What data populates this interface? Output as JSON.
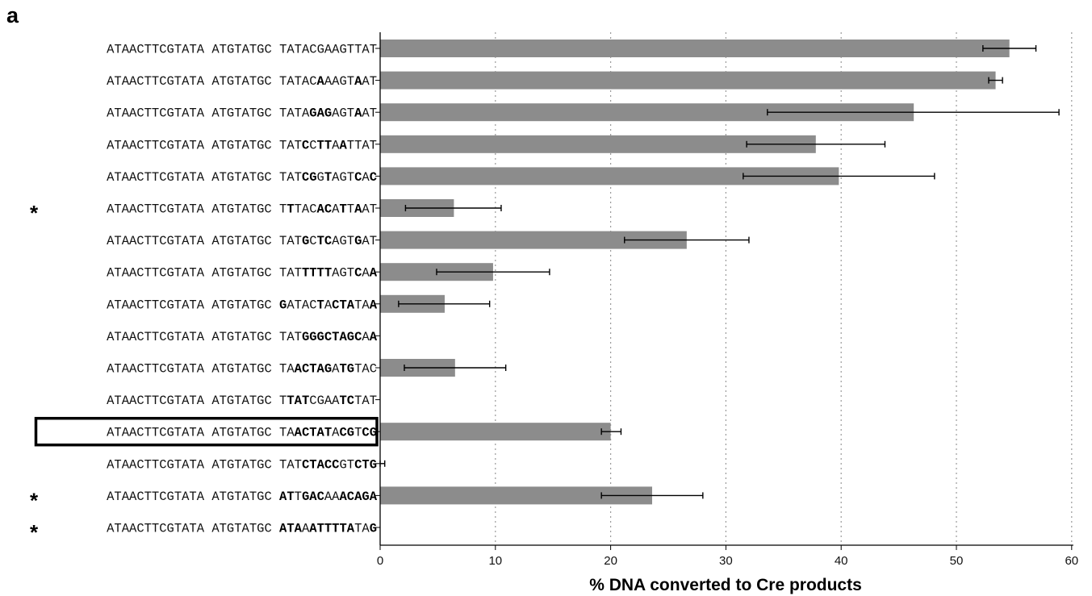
{
  "panel_label": "a",
  "chart_data": {
    "type": "bar",
    "orientation": "horizontal",
    "xlabel": "% DNA converted to Cre products",
    "xlim": [
      0,
      60
    ],
    "xticks": [
      "0",
      "10",
      "20",
      "30",
      "40",
      "50",
      "60"
    ],
    "grid": "vertical dotted lines at 10-unit intervals",
    "bar_color": "#8c8c8c",
    "highlight_color": "#000000",
    "categories": [
      {
        "segments": [
          {
            "t": "ATAACTTCGTATA ATGTATGC TATACGAAGTTAT",
            "b": false
          }
        ],
        "star": false,
        "boxed": false
      },
      {
        "segments": [
          {
            "t": "ATAACTTCGTATA ATGTATGC TATAC",
            "b": false
          },
          {
            "t": "A",
            "b": true
          },
          {
            "t": "AAGT",
            "b": false
          },
          {
            "t": "A",
            "b": true
          },
          {
            "t": "AT",
            "b": false
          }
        ],
        "star": false,
        "boxed": false
      },
      {
        "segments": [
          {
            "t": "ATAACTTCGTATA ATGTATGC TATA",
            "b": false
          },
          {
            "t": "GAG",
            "b": true
          },
          {
            "t": "AGT",
            "b": false
          },
          {
            "t": "A",
            "b": true
          },
          {
            "t": "AT",
            "b": false
          }
        ],
        "star": false,
        "boxed": false
      },
      {
        "segments": [
          {
            "t": "ATAACTTCGTATA ATGTATGC TAT",
            "b": false
          },
          {
            "t": "C",
            "b": true
          },
          {
            "t": "C",
            "b": false
          },
          {
            "t": "TT",
            "b": true
          },
          {
            "t": "A",
            "b": false
          },
          {
            "t": "A",
            "b": true
          },
          {
            "t": "TTAT",
            "b": false
          }
        ],
        "star": false,
        "boxed": false
      },
      {
        "segments": [
          {
            "t": "ATAACTTCGTATA ATGTATGC TAT",
            "b": false
          },
          {
            "t": "CG",
            "b": true
          },
          {
            "t": "G",
            "b": false
          },
          {
            "t": "T",
            "b": true
          },
          {
            "t": "AGT",
            "b": false
          },
          {
            "t": "C",
            "b": true
          },
          {
            "t": "A",
            "b": false
          },
          {
            "t": "C",
            "b": true
          }
        ],
        "star": false,
        "boxed": false
      },
      {
        "segments": [
          {
            "t": "ATAACTTCGTATA ATGTATGC T",
            "b": false
          },
          {
            "t": "T",
            "b": true
          },
          {
            "t": "TAC",
            "b": false
          },
          {
            "t": "AC",
            "b": true
          },
          {
            "t": "A",
            "b": false
          },
          {
            "t": "T",
            "b": true
          },
          {
            "t": "T",
            "b": false
          },
          {
            "t": "A",
            "b": true
          },
          {
            "t": "AT",
            "b": false
          }
        ],
        "star": true,
        "boxed": false
      },
      {
        "segments": [
          {
            "t": "ATAACTTCGTATA ATGTATGC TAT",
            "b": false
          },
          {
            "t": "G",
            "b": true
          },
          {
            "t": "C",
            "b": false
          },
          {
            "t": "TC",
            "b": true
          },
          {
            "t": "AGT",
            "b": false
          },
          {
            "t": "G",
            "b": true
          },
          {
            "t": "AT",
            "b": false
          }
        ],
        "star": false,
        "boxed": false
      },
      {
        "segments": [
          {
            "t": "ATAACTTCGTATA ATGTATGC TAT",
            "b": false
          },
          {
            "t": "TTTT",
            "b": true
          },
          {
            "t": "AGT",
            "b": false
          },
          {
            "t": "C",
            "b": true
          },
          {
            "t": "A",
            "b": false
          },
          {
            "t": "A",
            "b": true
          }
        ],
        "star": false,
        "boxed": false
      },
      {
        "segments": [
          {
            "t": "ATAACTTCGTATA ATGTATGC ",
            "b": false
          },
          {
            "t": "G",
            "b": true
          },
          {
            "t": "ATAC",
            "b": false
          },
          {
            "t": "T",
            "b": true
          },
          {
            "t": "A",
            "b": false
          },
          {
            "t": "CTA",
            "b": true
          },
          {
            "t": "TA",
            "b": false
          },
          {
            "t": "A",
            "b": true
          }
        ],
        "star": false,
        "boxed": false
      },
      {
        "segments": [
          {
            "t": "ATAACTTCGTATA ATGTATGC TAT",
            "b": false
          },
          {
            "t": "GGG",
            "b": true
          },
          {
            "t": "CTAGC",
            "b": true
          },
          {
            "t": "A",
            "b": false
          },
          {
            "t": "A",
            "b": true
          }
        ],
        "star": false,
        "boxed": false
      },
      {
        "segments": [
          {
            "t": "ATAACTTCGTATA ATGTATGC TA",
            "b": false
          },
          {
            "t": "ACTAG",
            "b": true
          },
          {
            "t": "A",
            "b": false
          },
          {
            "t": "TG",
            "b": true
          },
          {
            "t": "TAC",
            "b": false
          }
        ],
        "star": false,
        "boxed": false
      },
      {
        "segments": [
          {
            "t": "ATAACTTCGTATA ATGTATGC T",
            "b": false
          },
          {
            "t": "TAT",
            "b": true
          },
          {
            "t": "CGAA",
            "b": false
          },
          {
            "t": "TC",
            "b": true
          },
          {
            "t": "TAT",
            "b": false
          }
        ],
        "star": false,
        "boxed": false
      },
      {
        "segments": [
          {
            "t": "ATAACTTCGTATA ATGTATGC TA",
            "b": false
          },
          {
            "t": "ACTAT",
            "b": true
          },
          {
            "t": "A",
            "b": false
          },
          {
            "t": "CG",
            "b": true
          },
          {
            "t": "T",
            "b": false
          },
          {
            "t": "CG",
            "b": true
          }
        ],
        "star": false,
        "boxed": true
      },
      {
        "segments": [
          {
            "t": "ATAACTTCGTATA ATGTATGC TAT",
            "b": false
          },
          {
            "t": "CTACC",
            "b": true
          },
          {
            "t": "GT",
            "b": false
          },
          {
            "t": "CTG",
            "b": true
          }
        ],
        "star": false,
        "boxed": false
      },
      {
        "segments": [
          {
            "t": "ATAACTTCGTATA ATGTATGC ",
            "b": false
          },
          {
            "t": "AT",
            "b": true
          },
          {
            "t": "T",
            "b": false
          },
          {
            "t": "GAC",
            "b": true
          },
          {
            "t": "AA",
            "b": false
          },
          {
            "t": "ACAGA",
            "b": true
          }
        ],
        "star": true,
        "boxed": false
      },
      {
        "segments": [
          {
            "t": "ATAACTTCGTATA ATGTATGC ",
            "b": false
          },
          {
            "t": "ATA",
            "b": true
          },
          {
            "t": "A",
            "b": false
          },
          {
            "t": "ATTTTA",
            "b": true
          },
          {
            "t": "TA",
            "b": false
          },
          {
            "t": "G",
            "b": true
          }
        ],
        "star": true,
        "boxed": false
      }
    ],
    "star_symbol": "*",
    "values": [
      54.6,
      53.4,
      46.3,
      37.8,
      39.8,
      6.4,
      26.6,
      9.8,
      5.6,
      0,
      6.5,
      0,
      20.0,
      0,
      23.6,
      0
    ],
    "errors": [
      [
        52.3,
        56.9
      ],
      [
        52.8,
        54.0
      ],
      [
        33.6,
        58.9
      ],
      [
        31.8,
        43.8
      ],
      [
        31.5,
        48.1
      ],
      [
        2.2,
        10.5
      ],
      [
        21.2,
        32.0
      ],
      [
        4.9,
        14.7
      ],
      [
        1.6,
        9.5
      ],
      null,
      [
        2.1,
        10.9
      ],
      null,
      [
        19.2,
        20.9
      ],
      [
        0.0,
        0.4
      ],
      [
        19.2,
        28.0
      ],
      null
    ]
  }
}
